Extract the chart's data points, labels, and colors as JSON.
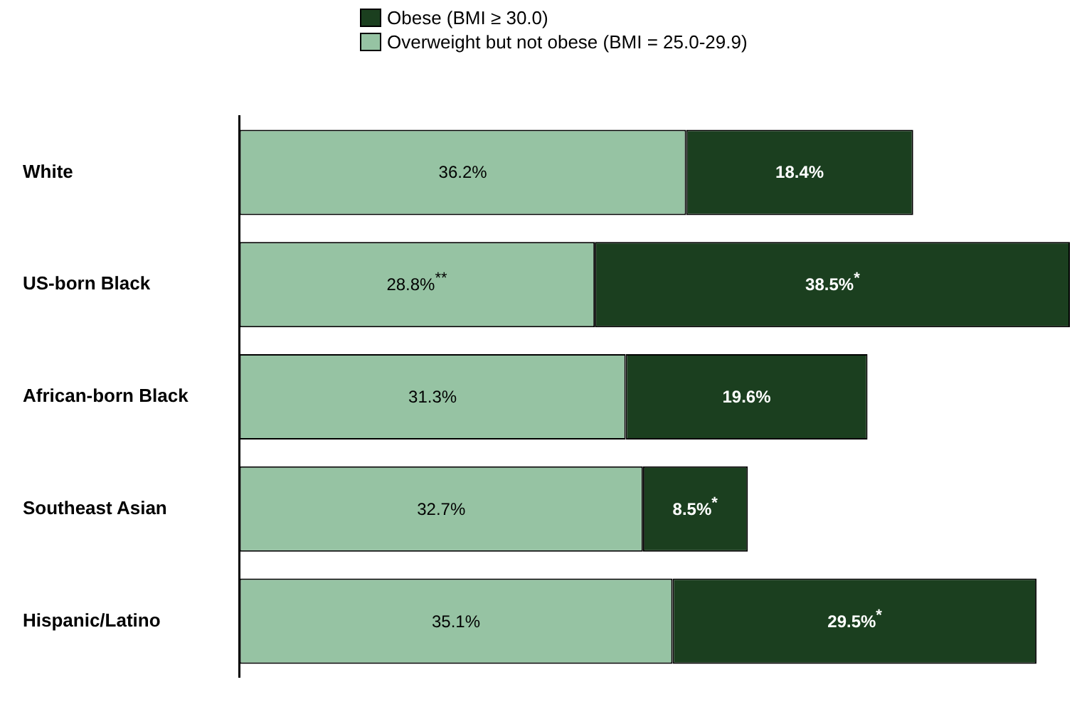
{
  "chart_data": {
    "type": "bar",
    "orientation": "horizontal",
    "stacked": true,
    "legend": "top",
    "categories": [
      "White",
      "US-born Black",
      "African-born Black",
      "Southeast Asian",
      "Hispanic/Latino"
    ],
    "series": [
      {
        "name": "Overweight but not obese (BMI = 25.0-29.9)",
        "color": "#96c3a3",
        "values": [
          36.2,
          28.8,
          31.3,
          32.7,
          35.1
        ],
        "value_labels": [
          "36.2%",
          "28.8%$^{**}$",
          "31.3%",
          "32.7%",
          "35.1%"
        ]
      },
      {
        "name": "Obese (BMI ≥ 30.0)",
        "color": "#1b3f1f",
        "values": [
          18.4,
          38.5,
          19.6,
          8.5,
          29.5
        ],
        "value_labels": [
          "18.4%",
          "38.5%$^{*}$",
          "19.6%",
          "8.5%$^{*}$",
          "29.5%$^{*}$"
        ]
      }
    ],
    "grid": false
  }
}
